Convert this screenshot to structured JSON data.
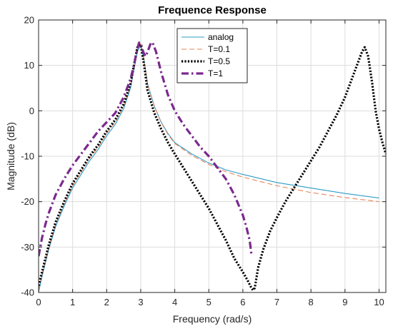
{
  "chart_data": {
    "type": "line",
    "title": "Frequence Response",
    "xlabel": "Frequency (rad/s)",
    "ylabel": "Magnitude (dB)",
    "xlim": [
      0,
      10.2
    ],
    "ylim": [
      -40,
      20
    ],
    "xticks": [
      0,
      1,
      2,
      3,
      4,
      5,
      6,
      7,
      8,
      9,
      10
    ],
    "yticks": [
      -40,
      -30,
      -20,
      -10,
      0,
      10,
      20
    ],
    "grid": true,
    "legend_position": "top-center",
    "series": [
      {
        "name": "analog",
        "style": "solid",
        "color": "#2e9bc4",
        "x": [
          0,
          0.1,
          0.2,
          0.3,
          0.5,
          0.75,
          1.0,
          1.25,
          1.5,
          1.75,
          2.0,
          2.25,
          2.5,
          2.7,
          2.8,
          2.9,
          3.0,
          3.1,
          3.2,
          3.4,
          3.6,
          3.8,
          4.0,
          4.5,
          5.0,
          5.5,
          6.0,
          7.0,
          8.0,
          9.0,
          10.0
        ],
        "y": [
          -40,
          -36.5,
          -33.5,
          -30.5,
          -25.5,
          -21,
          -17,
          -14,
          -11,
          -8.5,
          -5.5,
          -3,
          0.5,
          5,
          9,
          13,
          14.5,
          11,
          6,
          1,
          -2.5,
          -5,
          -7,
          -9.5,
          -11.5,
          -13,
          -14,
          -15.8,
          -17,
          -18.2,
          -19.2
        ]
      },
      {
        "name": "T=0.1",
        "style": "dashed",
        "color": "#e8845a",
        "x": [
          0,
          0.1,
          0.2,
          0.3,
          0.5,
          0.75,
          1.0,
          1.25,
          1.5,
          1.75,
          2.0,
          2.25,
          2.5,
          2.7,
          2.8,
          2.9,
          3.0,
          3.1,
          3.2,
          3.4,
          3.6,
          3.8,
          4.0,
          4.5,
          5.0,
          5.5,
          6.0,
          7.0,
          8.0,
          9.0,
          10.0
        ],
        "y": [
          -39.5,
          -36,
          -33,
          -30,
          -25,
          -20.5,
          -16.5,
          -13.5,
          -10.5,
          -8,
          -5,
          -2.5,
          1,
          5.5,
          9.5,
          13.5,
          14.8,
          11.2,
          6,
          1,
          -2.6,
          -5.2,
          -7.2,
          -9.8,
          -11.8,
          -13.4,
          -14.6,
          -16.5,
          -18,
          -19.1,
          -20
        ]
      },
      {
        "name": "T=0.5",
        "style": "dotted",
        "color": "#000000",
        "x": [
          0,
          0.1,
          0.2,
          0.3,
          0.5,
          0.75,
          1.0,
          1.25,
          1.5,
          1.75,
          2.0,
          2.25,
          2.5,
          2.7,
          2.8,
          2.9,
          3.0,
          3.1,
          3.2,
          3.4,
          3.6,
          3.8,
          4.0,
          4.25,
          4.5,
          4.75,
          5.0,
          5.25,
          5.5,
          5.75,
          6.0,
          6.15,
          6.25,
          6.3,
          6.35,
          6.45,
          6.6,
          6.8,
          7.0,
          7.25,
          7.5,
          7.75,
          8.0,
          8.25,
          8.5,
          8.75,
          9.0,
          9.2,
          9.35,
          9.5,
          9.58,
          9.68,
          9.8,
          9.9,
          10.0,
          10.1,
          10.2
        ],
        "y": [
          -38.5,
          -35.5,
          -32.5,
          -29.5,
          -24.5,
          -20,
          -16,
          -13,
          -10,
          -7.5,
          -4.5,
          -2,
          1.5,
          6,
          10,
          14,
          14.6,
          10,
          4.5,
          -0.5,
          -4,
          -7,
          -9.5,
          -12.5,
          -15.5,
          -18.5,
          -21.5,
          -25,
          -28.5,
          -32.5,
          -35.5,
          -37.5,
          -39,
          -39.5,
          -39,
          -34.5,
          -30.5,
          -26.5,
          -23.5,
          -20,
          -17,
          -14,
          -11,
          -8,
          -4.5,
          -1,
          3,
          7,
          10,
          13,
          14,
          12,
          6,
          0,
          -4,
          -7,
          -9.5
        ]
      },
      {
        "name": "T=1",
        "style": "dashdot",
        "color": "#7b2a8e",
        "x": [
          0,
          0.1,
          0.2,
          0.3,
          0.5,
          0.75,
          1.0,
          1.25,
          1.5,
          1.75,
          2.0,
          2.25,
          2.5,
          2.7,
          2.8,
          2.9,
          2.95,
          3.0,
          3.05,
          3.1,
          3.15,
          3.2,
          3.3,
          3.35,
          3.45,
          3.6,
          3.8,
          4.0,
          4.25,
          4.5,
          4.75,
          5.0,
          5.25,
          5.5,
          5.75,
          6.0,
          6.1,
          6.2,
          6.25
        ],
        "y": [
          -32,
          -28,
          -25,
          -22.5,
          -18.5,
          -15,
          -12,
          -9.5,
          -7,
          -4.5,
          -2.5,
          -0.5,
          3,
          7,
          10,
          13.5,
          15,
          15,
          13.5,
          12.5,
          12,
          13,
          15,
          15,
          13,
          8.5,
          3.5,
          0,
          -3,
          -5.5,
          -8,
          -10,
          -12.5,
          -15,
          -18.5,
          -23,
          -25.5,
          -28.5,
          -31.5
        ]
      }
    ]
  }
}
